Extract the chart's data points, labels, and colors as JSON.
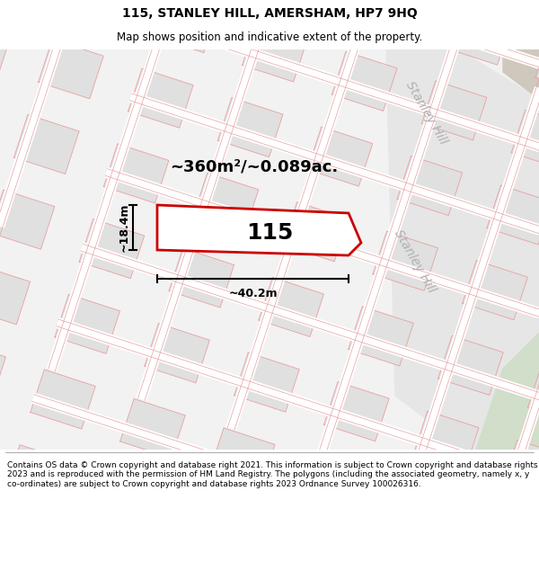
{
  "title": "115, STANLEY HILL, AMERSHAM, HP7 9HQ",
  "subtitle": "Map shows position and indicative extent of the property.",
  "footer": "Contains OS data © Crown copyright and database right 2021. This information is subject to Crown copyright and database rights 2023 and is reproduced with the permission of HM Land Registry. The polygons (including the associated geometry, namely x, y co-ordinates) are subject to Crown copyright and database rights 2023 Ordnance Survey 100026316.",
  "map_bg": "#f2f2f2",
  "plot_outline_color": "#cc0000",
  "plot_label": "115",
  "area_label": "~360m²/~0.089ac.",
  "width_label": "~40.2m",
  "height_label": "~18.4m",
  "street_label": "Stanley Hill",
  "grid_line_color": "#e8a0a0",
  "block_color": "#e0e0e0",
  "road_color": "#f8f8f8",
  "green_area_color": "#d0deca",
  "tan_area_color": "#cfc8bc",
  "road_stripe_color": "#e8e8e8",
  "fig_width": 6.0,
  "fig_height": 6.25,
  "title_fontsize": 10,
  "subtitle_fontsize": 8.5,
  "footer_fontsize": 6.5
}
